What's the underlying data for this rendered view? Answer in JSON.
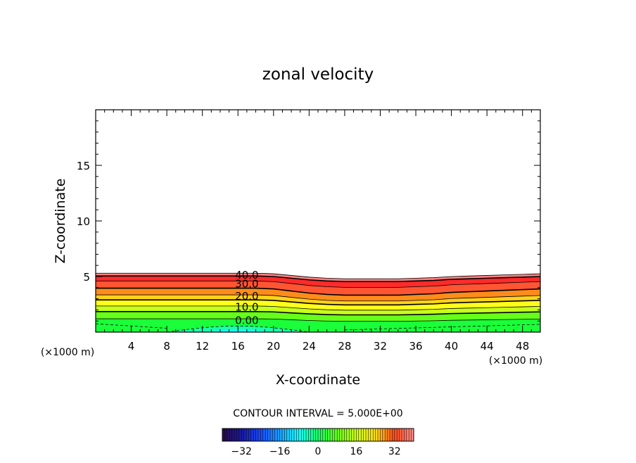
{
  "chart_data": {
    "type": "filled-contour",
    "title": "zonal velocity",
    "xlabel": "X-coordinate",
    "ylabel": "Z-coordinate",
    "x_unit": "(×1000 m)",
    "y_unit": "(×1000 m)",
    "xlim": [
      0,
      50
    ],
    "ylim": [
      0,
      20
    ],
    "x_ticks": [
      4,
      8,
      12,
      16,
      20,
      24,
      28,
      32,
      36,
      40,
      44,
      48
    ],
    "y_ticks": [
      5,
      10,
      15
    ],
    "contour_labels": [
      {
        "value": "40.0",
        "x": 17.0,
        "z": 5.2
      },
      {
        "value": "30.0",
        "x": 17.0,
        "z": 4.4
      },
      {
        "value": "20.0",
        "x": 17.0,
        "z": 3.3
      },
      {
        "value": "10.0",
        "x": 17.0,
        "z": 2.3
      },
      {
        "value": "0.00",
        "x": 17.0,
        "z": 1.1
      }
    ],
    "contour_interval_text": "CONTOUR INTERVAL = 5.000E+00",
    "colorbar": {
      "min": -40,
      "max": 40,
      "ticks": [
        -32,
        -16,
        0,
        16,
        32
      ],
      "tick_labels": [
        "−32",
        "−16",
        "0",
        "16",
        "32"
      ]
    },
    "profile": {
      "x": [
        0,
        4,
        8,
        12,
        16,
        18,
        20,
        22,
        24,
        26,
        28,
        30,
        32,
        34,
        36,
        38,
        40,
        42,
        44,
        46,
        48,
        50
      ],
      "top_z": [
        5.3,
        5.3,
        5.3,
        5.3,
        5.3,
        5.3,
        5.25,
        5.1,
        4.95,
        4.85,
        4.8,
        4.8,
        4.8,
        4.8,
        4.85,
        4.9,
        5.0,
        5.05,
        5.1,
        5.15,
        5.2,
        5.25
      ],
      "dip": [
        0,
        0,
        0,
        0,
        0,
        0,
        0.05,
        0.2,
        0.4,
        0.55,
        0.65,
        0.7,
        0.7,
        0.7,
        0.65,
        0.6,
        0.5,
        0.45,
        0.4,
        0.35,
        0.3,
        0.25
      ]
    }
  },
  "colors": {
    "u40": "#ff8080",
    "u35": "#ff2a2a",
    "u30": "#ff5533",
    "u25": "#ff8c1a",
    "u20": "#ffd21a",
    "u15": "#ffff1a",
    "u10": "#c8ff1a",
    "u5": "#66ff1a",
    "u0": "#1aff3a",
    "un5": "#1affaa",
    "un10": "#1affff"
  }
}
